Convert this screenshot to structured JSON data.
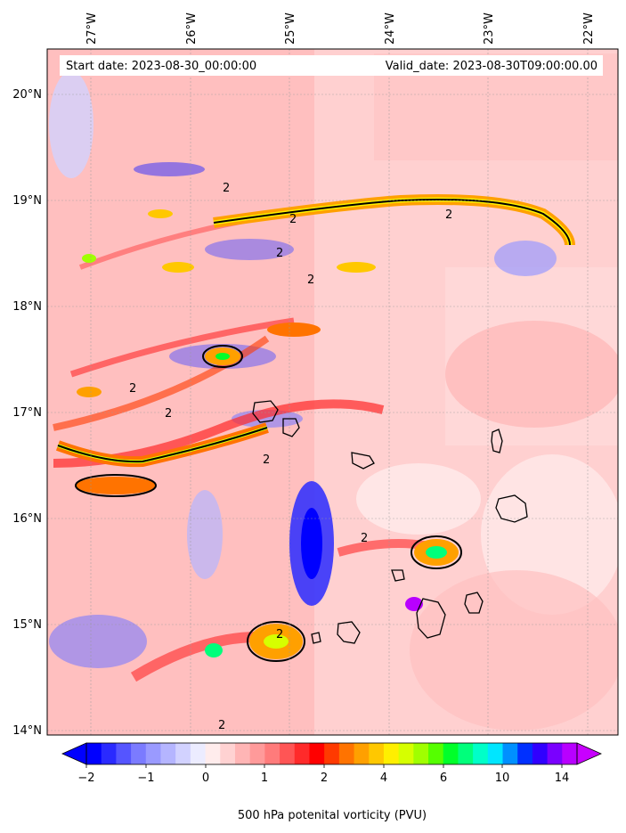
{
  "map": {
    "start_date_text": "Start date: 2023-08-30_00:00:00",
    "valid_date_text": "Valid_date: 2023-08-30T09:00:00.00",
    "lon_labels": [
      "27°W",
      "26°W",
      "25°W",
      "24°W",
      "23°W",
      "22°W"
    ],
    "lat_labels": [
      "20°N",
      "19°N",
      "18°N",
      "17°N",
      "16°N",
      "15°N",
      "14°N"
    ],
    "contour_label": "2",
    "colorbar": {
      "label": "500 hPa potenital vorticity (PVU)",
      "tick_labels": [
        "−2",
        "−1",
        "0",
        "1",
        "2",
        "4",
        "6",
        "10",
        "14"
      ],
      "colors": [
        "#0000ff",
        "#2a2aff",
        "#5555ff",
        "#7b7bff",
        "#9a9aff",
        "#b5b5ff",
        "#d2d2ff",
        "#ececff",
        "#ffecec",
        "#ffd2d2",
        "#ffb5b5",
        "#ff9a9a",
        "#ff7b7b",
        "#ff5555",
        "#ff2a2a",
        "#ff0000",
        "#ff3a00",
        "#ff7300",
        "#ffa000",
        "#ffc800",
        "#ffef00",
        "#d6ff00",
        "#a0ff00",
        "#55ff00",
        "#00ff2a",
        "#00ff7b",
        "#00ffc8",
        "#00e6ff",
        "#0090ff",
        "#0030ff",
        "#3000ff",
        "#7a00ff",
        "#b800ff"
      ],
      "extend_low_color": "#0000ff",
      "extend_high_color": "#c800ff"
    }
  }
}
